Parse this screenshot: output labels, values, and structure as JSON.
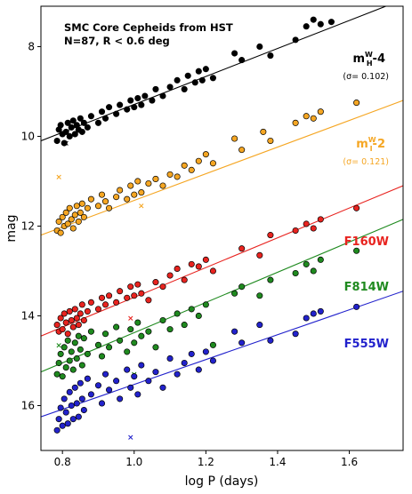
{
  "chart_data": {
    "type": "scatter",
    "title_lines": [
      "SMC Core Cepheids from HST",
      "N=87, R < 0.6 deg"
    ],
    "xlabel": "log P (days)",
    "ylabel": "mag",
    "xlim": [
      0.74,
      1.75
    ],
    "ylim": [
      17.0,
      7.1
    ],
    "y_inverted": true,
    "xticks": [
      0.8,
      1.0,
      1.2,
      1.4,
      1.6
    ],
    "xtick_labels": [
      "0.8",
      "1.0",
      "1.2",
      "1.4",
      "1.6"
    ],
    "yticks": [
      8,
      10,
      12,
      14,
      16
    ],
    "ytick_labels": [
      "8",
      "10",
      "12",
      "14",
      "16"
    ],
    "grid": false,
    "series": [
      {
        "name": "m_H^W-4",
        "label_main": "m",
        "label_sup": "W",
        "label_sub": "H",
        "label_tail": "-4",
        "sigma_label": "(σ= 0.102)",
        "color": "#000000",
        "fit": {
          "x": [
            0.74,
            1.75
          ],
          "y": [
            10.1,
            6.95
          ]
        },
        "points": [
          [
            0.785,
            10.1
          ],
          [
            0.79,
            9.85
          ],
          [
            0.795,
            9.75
          ],
          [
            0.8,
            9.95
          ],
          [
            0.805,
            10.15
          ],
          [
            0.81,
            9.9
          ],
          [
            0.815,
            9.7
          ],
          [
            0.82,
            10.0
          ],
          [
            0.825,
            9.8
          ],
          [
            0.83,
            9.65
          ],
          [
            0.835,
            9.95
          ],
          [
            0.84,
            9.75
          ],
          [
            0.845,
            9.85
          ],
          [
            0.85,
            9.6
          ],
          [
            0.855,
            9.9
          ],
          [
            0.86,
            9.7
          ],
          [
            0.87,
            9.8
          ],
          [
            0.88,
            9.55
          ],
          [
            0.9,
            9.7
          ],
          [
            0.91,
            9.45
          ],
          [
            0.92,
            9.6
          ],
          [
            0.93,
            9.35
          ],
          [
            0.95,
            9.5
          ],
          [
            0.96,
            9.3
          ],
          [
            0.98,
            9.4
          ],
          [
            0.99,
            9.2
          ],
          [
            1.0,
            9.35
          ],
          [
            1.01,
            9.15
          ],
          [
            1.02,
            9.3
          ],
          [
            1.03,
            9.1
          ],
          [
            1.05,
            9.2
          ],
          [
            1.06,
            8.95
          ],
          [
            1.08,
            9.1
          ],
          [
            1.1,
            8.9
          ],
          [
            1.12,
            8.75
          ],
          [
            1.14,
            8.95
          ],
          [
            1.15,
            8.65
          ],
          [
            1.17,
            8.8
          ],
          [
            1.18,
            8.55
          ],
          [
            1.19,
            8.75
          ],
          [
            1.2,
            8.5
          ],
          [
            1.22,
            8.7
          ],
          [
            1.28,
            8.15
          ],
          [
            1.3,
            8.3
          ],
          [
            1.35,
            8.0
          ],
          [
            1.38,
            8.2
          ],
          [
            1.45,
            7.85
          ],
          [
            1.48,
            7.55
          ],
          [
            1.5,
            7.4
          ],
          [
            1.52,
            7.5
          ],
          [
            1.55,
            7.45
          ],
          [
            1.62,
            7.0
          ]
        ],
        "outliers": [
          [
            0.81,
            10.15
          ]
        ]
      },
      {
        "name": "m_I^W-2",
        "label_main": "m",
        "label_sup": "W",
        "label_sub": "I",
        "label_tail": "-2",
        "sigma_label": "(σ= 0.121)",
        "color": "#f5a623",
        "fit": {
          "x": [
            0.74,
            1.75
          ],
          "y": [
            12.2,
            9.2
          ]
        },
        "points": [
          [
            0.785,
            12.1
          ],
          [
            0.79,
            11.9
          ],
          [
            0.795,
            12.15
          ],
          [
            0.8,
            11.8
          ],
          [
            0.805,
            12.0
          ],
          [
            0.81,
            11.7
          ],
          [
            0.815,
            11.95
          ],
          [
            0.82,
            11.6
          ],
          [
            0.825,
            11.85
          ],
          [
            0.83,
            12.05
          ],
          [
            0.835,
            11.75
          ],
          [
            0.84,
            11.55
          ],
          [
            0.845,
            11.9
          ],
          [
            0.85,
            11.7
          ],
          [
            0.855,
            11.5
          ],
          [
            0.86,
            11.8
          ],
          [
            0.87,
            11.6
          ],
          [
            0.88,
            11.4
          ],
          [
            0.9,
            11.55
          ],
          [
            0.91,
            11.3
          ],
          [
            0.92,
            11.45
          ],
          [
            0.93,
            11.6
          ],
          [
            0.95,
            11.35
          ],
          [
            0.96,
            11.2
          ],
          [
            0.98,
            11.4
          ],
          [
            0.99,
            11.1
          ],
          [
            1.0,
            11.3
          ],
          [
            1.01,
            11.0
          ],
          [
            1.02,
            11.25
          ],
          [
            1.04,
            11.05
          ],
          [
            1.06,
            10.95
          ],
          [
            1.08,
            11.1
          ],
          [
            1.1,
            10.85
          ],
          [
            1.12,
            10.9
          ],
          [
            1.14,
            10.65
          ],
          [
            1.16,
            10.75
          ],
          [
            1.18,
            10.55
          ],
          [
            1.2,
            10.4
          ],
          [
            1.22,
            10.6
          ],
          [
            1.28,
            10.05
          ],
          [
            1.3,
            10.3
          ],
          [
            1.36,
            9.9
          ],
          [
            1.38,
            10.1
          ],
          [
            1.45,
            9.7
          ],
          [
            1.48,
            9.55
          ],
          [
            1.5,
            9.6
          ],
          [
            1.52,
            9.45
          ],
          [
            1.62,
            9.25
          ]
        ],
        "outliers": [
          [
            0.79,
            10.9
          ],
          [
            1.02,
            11.55
          ]
        ]
      },
      {
        "name": "F160W",
        "color": "#e8231f",
        "fit": {
          "x": [
            0.74,
            1.75
          ],
          "y": [
            14.45,
            11.1
          ]
        },
        "points": [
          [
            0.785,
            14.2
          ],
          [
            0.79,
            14.35
          ],
          [
            0.795,
            14.05
          ],
          [
            0.8,
            14.3
          ],
          [
            0.805,
            13.95
          ],
          [
            0.81,
            14.15
          ],
          [
            0.815,
            14.4
          ],
          [
            0.82,
            13.9
          ],
          [
            0.825,
            14.1
          ],
          [
            0.83,
            14.25
          ],
          [
            0.835,
            13.85
          ],
          [
            0.84,
            14.05
          ],
          [
            0.845,
            14.2
          ],
          [
            0.85,
            13.95
          ],
          [
            0.855,
            13.75
          ],
          [
            0.86,
            14.1
          ],
          [
            0.87,
            13.9
          ],
          [
            0.88,
            13.7
          ],
          [
            0.9,
            13.85
          ],
          [
            0.91,
            13.6
          ],
          [
            0.92,
            13.75
          ],
          [
            0.93,
            13.55
          ],
          [
            0.95,
            13.7
          ],
          [
            0.96,
            13.45
          ],
          [
            0.98,
            13.6
          ],
          [
            0.99,
            13.35
          ],
          [
            1.0,
            13.55
          ],
          [
            1.01,
            13.3
          ],
          [
            1.02,
            13.5
          ],
          [
            1.04,
            13.65
          ],
          [
            1.06,
            13.25
          ],
          [
            1.08,
            13.35
          ],
          [
            1.1,
            13.1
          ],
          [
            1.12,
            12.95
          ],
          [
            1.14,
            13.2
          ],
          [
            1.16,
            12.85
          ],
          [
            1.18,
            12.9
          ],
          [
            1.2,
            12.75
          ],
          [
            1.22,
            13.0
          ],
          [
            1.3,
            12.5
          ],
          [
            1.35,
            12.65
          ],
          [
            1.38,
            12.2
          ],
          [
            1.45,
            12.1
          ],
          [
            1.48,
            11.95
          ],
          [
            1.5,
            12.05
          ],
          [
            1.52,
            11.85
          ],
          [
            1.62,
            11.6
          ]
        ],
        "outliers": [
          [
            0.99,
            14.05
          ]
        ]
      },
      {
        "name": "F814W",
        "color": "#1f8a1f",
        "fit": {
          "x": [
            0.74,
            1.75
          ],
          "y": [
            15.25,
            11.85
          ]
        },
        "points": [
          [
            0.785,
            15.3
          ],
          [
            0.79,
            15.05
          ],
          [
            0.795,
            14.85
          ],
          [
            0.8,
            15.35
          ],
          [
            0.805,
            14.7
          ],
          [
            0.81,
            15.15
          ],
          [
            0.815,
            14.55
          ],
          [
            0.82,
            15.0
          ],
          [
            0.825,
            14.8
          ],
          [
            0.83,
            15.2
          ],
          [
            0.835,
            14.6
          ],
          [
            0.84,
            14.95
          ],
          [
            0.845,
            14.45
          ],
          [
            0.85,
            14.75
          ],
          [
            0.855,
            15.1
          ],
          [
            0.86,
            14.5
          ],
          [
            0.87,
            14.85
          ],
          [
            0.88,
            14.35
          ],
          [
            0.9,
            14.65
          ],
          [
            0.91,
            14.9
          ],
          [
            0.92,
            14.4
          ],
          [
            0.93,
            14.7
          ],
          [
            0.95,
            14.25
          ],
          [
            0.96,
            14.55
          ],
          [
            0.98,
            14.8
          ],
          [
            0.99,
            14.3
          ],
          [
            1.0,
            14.6
          ],
          [
            1.01,
            14.15
          ],
          [
            1.02,
            14.45
          ],
          [
            1.04,
            14.35
          ],
          [
            1.06,
            14.7
          ],
          [
            1.08,
            14.1
          ],
          [
            1.1,
            14.3
          ],
          [
            1.12,
            13.95
          ],
          [
            1.14,
            14.2
          ],
          [
            1.16,
            13.85
          ],
          [
            1.18,
            14.0
          ],
          [
            1.2,
            13.75
          ],
          [
            1.22,
            14.65
          ],
          [
            1.28,
            13.5
          ],
          [
            1.3,
            13.35
          ],
          [
            1.35,
            13.55
          ],
          [
            1.38,
            13.2
          ],
          [
            1.45,
            13.05
          ],
          [
            1.48,
            12.85
          ],
          [
            1.5,
            13.0
          ],
          [
            1.52,
            12.75
          ],
          [
            1.62,
            12.55
          ]
        ],
        "outliers": [
          [
            0.79,
            14.65
          ],
          [
            1.0,
            15.3
          ]
        ]
      },
      {
        "name": "F555W",
        "color": "#2222cc",
        "fit": {
          "x": [
            0.74,
            1.75
          ],
          "y": [
            16.25,
            13.45
          ]
        },
        "points": [
          [
            0.785,
            16.55
          ],
          [
            0.79,
            16.3
          ],
          [
            0.795,
            16.05
          ],
          [
            0.8,
            16.45
          ],
          [
            0.805,
            15.85
          ],
          [
            0.81,
            16.15
          ],
          [
            0.815,
            16.4
          ],
          [
            0.82,
            15.7
          ],
          [
            0.825,
            16.0
          ],
          [
            0.83,
            16.3
          ],
          [
            0.835,
            15.6
          ],
          [
            0.84,
            15.95
          ],
          [
            0.845,
            16.25
          ],
          [
            0.85,
            15.5
          ],
          [
            0.855,
            15.85
          ],
          [
            0.86,
            16.1
          ],
          [
            0.87,
            15.4
          ],
          [
            0.88,
            15.75
          ],
          [
            0.9,
            15.55
          ],
          [
            0.91,
            15.95
          ],
          [
            0.92,
            15.3
          ],
          [
            0.93,
            15.65
          ],
          [
            0.95,
            15.45
          ],
          [
            0.96,
            15.85
          ],
          [
            0.98,
            15.2
          ],
          [
            0.99,
            15.6
          ],
          [
            1.0,
            15.35
          ],
          [
            1.01,
            15.75
          ],
          [
            1.02,
            15.1
          ],
          [
            1.04,
            15.45
          ],
          [
            1.06,
            15.25
          ],
          [
            1.08,
            15.6
          ],
          [
            1.1,
            14.95
          ],
          [
            1.12,
            15.3
          ],
          [
            1.14,
            15.05
          ],
          [
            1.16,
            14.85
          ],
          [
            1.18,
            15.2
          ],
          [
            1.2,
            14.8
          ],
          [
            1.22,
            15.0
          ],
          [
            1.28,
            14.35
          ],
          [
            1.3,
            14.6
          ],
          [
            1.35,
            14.2
          ],
          [
            1.38,
            14.55
          ],
          [
            1.45,
            14.4
          ],
          [
            1.48,
            14.05
          ],
          [
            1.5,
            13.95
          ],
          [
            1.52,
            13.9
          ],
          [
            1.62,
            13.8
          ]
        ],
        "outliers": [
          [
            0.99,
            16.7
          ]
        ]
      }
    ]
  }
}
